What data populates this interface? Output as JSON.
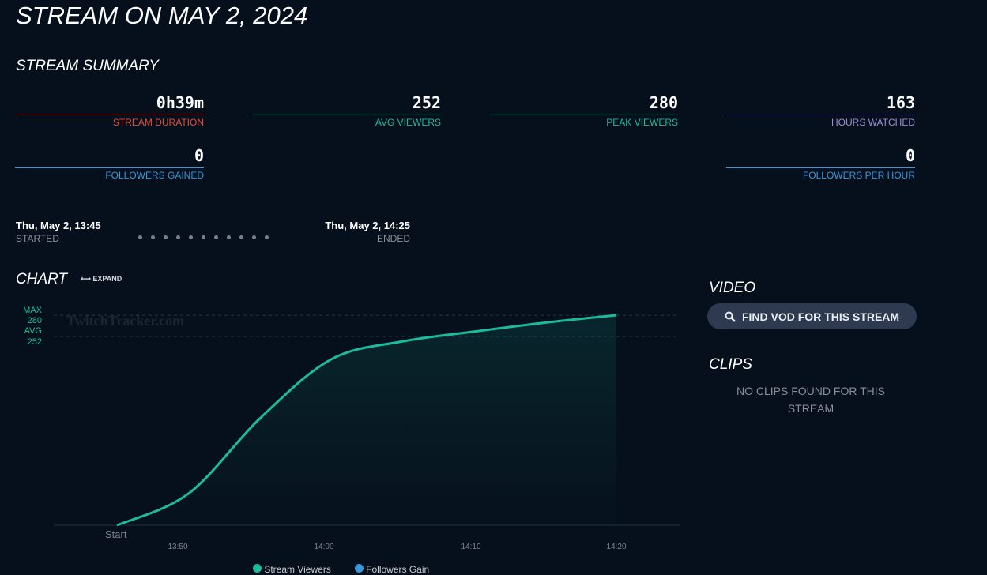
{
  "title": "STREAM ON MAY 2, 2024",
  "summary": {
    "heading": "STREAM SUMMARY",
    "stats": [
      {
        "value": "0h39m",
        "label": "STREAM DURATION",
        "color": "#e74c3c"
      },
      {
        "value": "252",
        "label": "AVG VIEWERS",
        "color": "#1abc9c"
      },
      {
        "value": "280",
        "label": "PEAK VIEWERS",
        "color": "#1abc9c"
      },
      {
        "value": "163",
        "label": "HOURS WATCHED",
        "color": "#9b8fd6"
      },
      {
        "value": "0",
        "label": "FOLLOWERS GAINED",
        "color": "#3498db"
      },
      {
        "value": "0",
        "label": "FOLLOWERS PER HOUR",
        "color": "#3498db"
      }
    ]
  },
  "timeline": {
    "started": "Thu, May 2, 13:45",
    "started_label": "STARTED",
    "ended": "Thu, May 2, 14:25",
    "ended_label": "ENDED"
  },
  "chart": {
    "heading": "CHART",
    "expand": "EXPAND",
    "watermark": "TwitchTracker.com",
    "max_label": "MAX",
    "max_value": "280",
    "avg_label": "AVG",
    "avg_value": "252",
    "start_label": "Start"
  },
  "chart_data": {
    "type": "area",
    "x_minutes_from_start": [
      0,
      5,
      10,
      15,
      20,
      25,
      30,
      35
    ],
    "x_ticks": [
      "13:50",
      "14:00",
      "14:10",
      "14:20"
    ],
    "series": [
      {
        "name": "Stream Viewers",
        "values": [
          0,
          42,
          142,
          221,
          245,
          258,
          270,
          280
        ],
        "color": "#1abc9c"
      },
      {
        "name": "Followers Gain",
        "values": [],
        "color": "#3498db"
      }
    ],
    "ylim": [
      0,
      280
    ]
  },
  "video": {
    "heading": "VIDEO",
    "button": "FIND VOD FOR THIS STREAM"
  },
  "clips": {
    "heading": "CLIPS",
    "empty": "NO CLIPS FOUND FOR THIS STREAM"
  }
}
